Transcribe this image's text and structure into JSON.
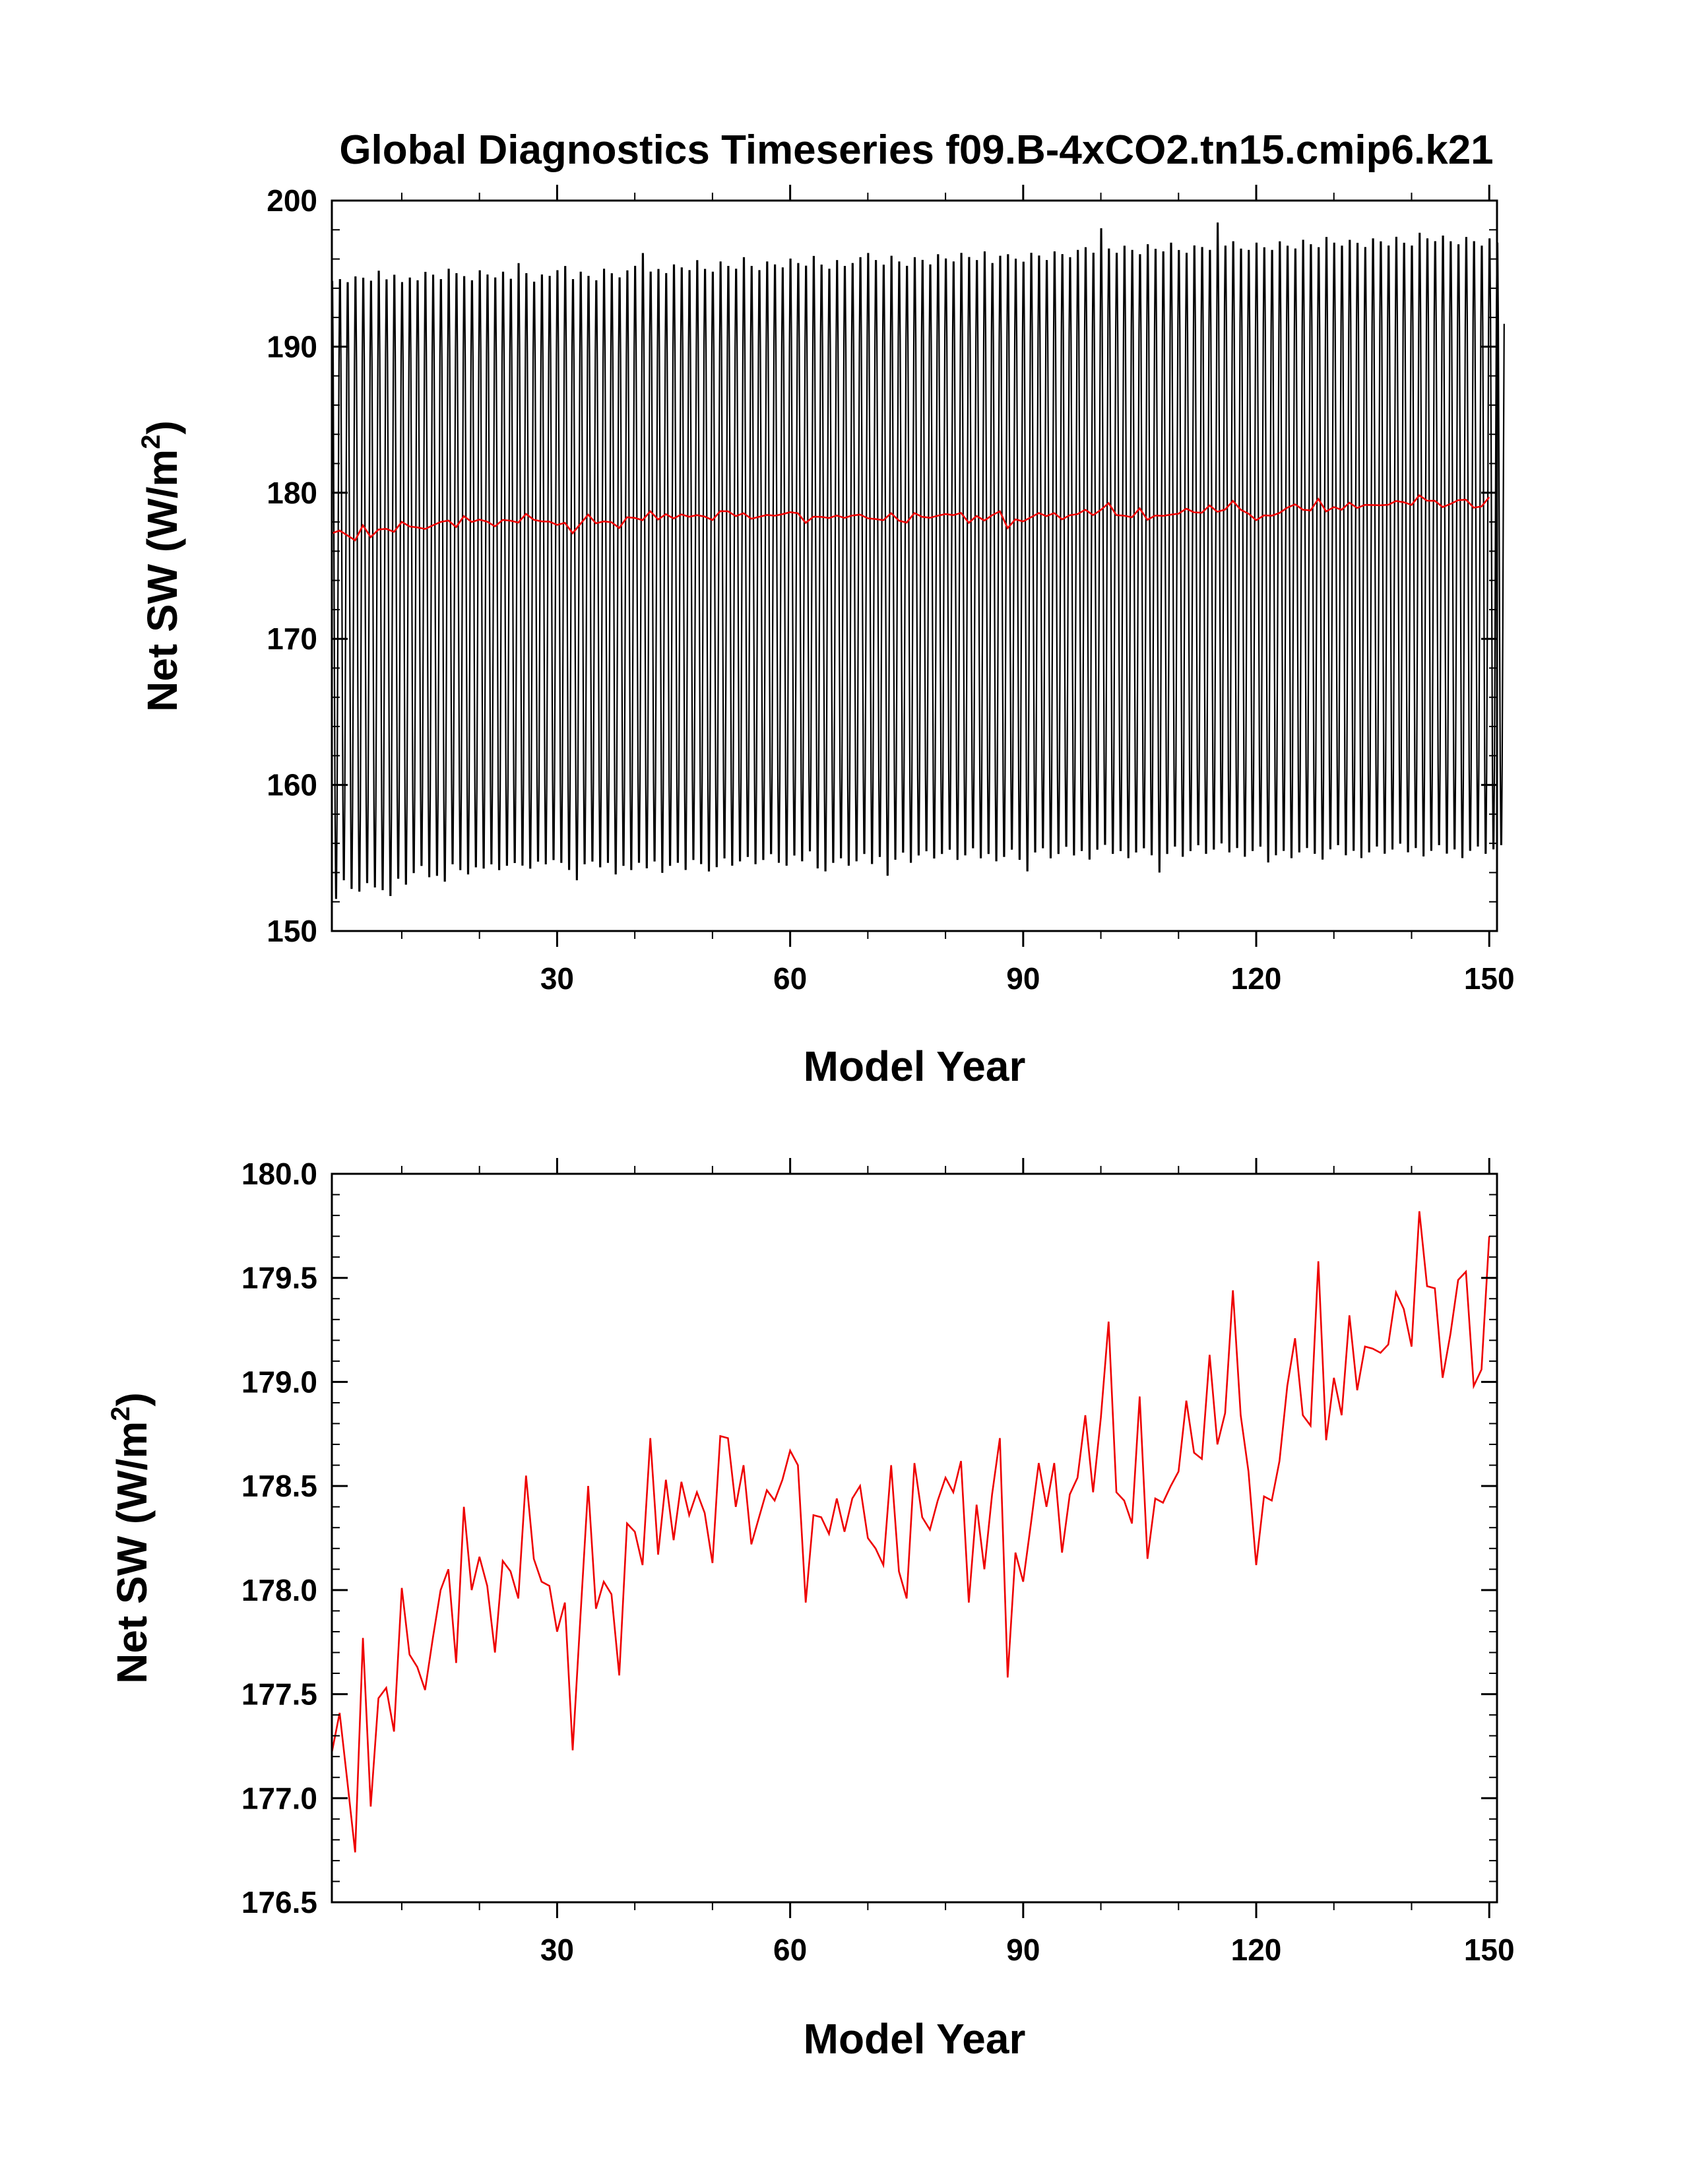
{
  "figure": {
    "title": "Global Diagnostics Timeseries f09.B-4xCO2.tn15.cmip6.k21",
    "line_colors": {
      "monthly": "#000000",
      "annual": "#ee0000"
    }
  },
  "chart_data": [
    {
      "type": "line",
      "title": "Global Diagnostics Timeseries f09.B-4xCO2.tn15.cmip6.k21",
      "xlabel": "Model Year",
      "ylabel_main": "Net SW (W/m",
      "ylabel_sup": "2",
      "ylabel_close": ")",
      "xlim": [
        1,
        151
      ],
      "ylim": [
        150,
        200
      ],
      "xticks": [
        30,
        60,
        90,
        120,
        150
      ],
      "xtick_labels": [
        "30",
        "60",
        "90",
        "120",
        "150"
      ],
      "yticks": [
        150,
        160,
        170,
        180,
        190,
        200
      ],
      "ytick_labels": [
        "150",
        "160",
        "170",
        "180",
        "190",
        "200"
      ],
      "grid": false,
      "legend": "none",
      "series": [
        {
          "type": "monthly_seasonal_cycle",
          "x_start": 1,
          "samples_per_year": 12,
          "annual_max": [
            195.2,
            195.3,
            195.1,
            195.5,
            195.4,
            195.2,
            195.9,
            195.3,
            195.6,
            195.1,
            195.4,
            195.2,
            195.8,
            195.6,
            195.3,
            196.0,
            195.7,
            195.5,
            195.2,
            195.9,
            195.6,
            195.4,
            195.8,
            195.3,
            196.4,
            195.7,
            195.1,
            195.6,
            195.5,
            195.9,
            196.2,
            195.3,
            195.8,
            195.5,
            195.2,
            196.0,
            195.7,
            195.4,
            195.9,
            196.2,
            197.1,
            195.8,
            196.0,
            195.7,
            196.3,
            196.1,
            195.9,
            196.6,
            196.0,
            195.8,
            196.5,
            196.2,
            196.0,
            196.8,
            196.2,
            195.9,
            196.5,
            196.3,
            196.1,
            196.7,
            196.4,
            196.2,
            196.9,
            196.3,
            196.0,
            196.6,
            196.2,
            196.4,
            196.8,
            197.1,
            196.6,
            196.3,
            196.9,
            196.5,
            196.2,
            196.8,
            196.6,
            196.3,
            197.0,
            196.7,
            196.5,
            197.1,
            196.8,
            196.6,
            197.2,
            196.4,
            196.9,
            197.0,
            196.7,
            196.5,
            197.1,
            196.9,
            196.6,
            197.2,
            197.0,
            196.8,
            197.3,
            197.5,
            197.1,
            198.8,
            197.4,
            197.1,
            197.6,
            197.3,
            197.0,
            197.7,
            197.4,
            197.2,
            197.8,
            197.3,
            197.1,
            197.6,
            197.5,
            197.3,
            199.2,
            197.6,
            197.9,
            197.4,
            197.3,
            197.8,
            197.5,
            197.3,
            197.9,
            197.6,
            197.4,
            198.0,
            197.7,
            197.5,
            198.2,
            197.8,
            197.6,
            198.0,
            197.8,
            197.5,
            198.1,
            197.9,
            197.6,
            198.2,
            197.8,
            197.6,
            198.5,
            198.1,
            197.9,
            198.3,
            197.9,
            197.7,
            198.2,
            197.9,
            197.6,
            198.1,
            197.8
          ],
          "annual_min": [
            151.5,
            152.8,
            152.2,
            152.0,
            152.6,
            152.3,
            152.1,
            151.7,
            152.9,
            152.5,
            153.3,
            153.8,
            153.0,
            153.1,
            152.7,
            153.9,
            153.5,
            153.2,
            153.7,
            153.6,
            153.9,
            153.5,
            153.8,
            154.0,
            153.8,
            153.6,
            154.1,
            153.9,
            154.2,
            154.0,
            153.5,
            152.8,
            153.9,
            154.1,
            153.7,
            154.0,
            153.2,
            153.8,
            153.5,
            154.0,
            153.6,
            154.1,
            153.3,
            153.8,
            154.0,
            153.5,
            154.2,
            153.9,
            153.4,
            153.7,
            154.3,
            153.8,
            154.1,
            154.4,
            153.9,
            154.2,
            154.6,
            154.0,
            153.8,
            154.5,
            154.1,
            154.8,
            153.6,
            153.4,
            154.0,
            154.3,
            153.8,
            154.1,
            154.6,
            153.9,
            154.4,
            153.1,
            154.2,
            154.7,
            154.0,
            154.5,
            154.8,
            154.3,
            154.6,
            154.9,
            154.2,
            154.5,
            155.0,
            154.3,
            154.6,
            154.1,
            154.4,
            154.9,
            154.2,
            153.4,
            154.7,
            155.0,
            154.3,
            154.6,
            155.1,
            154.5,
            154.8,
            154.2,
            154.9,
            155.2,
            154.6,
            154.8,
            154.3,
            154.7,
            155.0,
            154.5,
            153.3,
            154.6,
            155.1,
            154.4,
            154.8,
            155.2,
            154.6,
            154.9,
            155.3,
            154.7,
            155.0,
            154.4,
            154.8,
            155.1,
            154.0,
            154.5,
            154.8,
            154.3,
            154.7,
            155.0,
            154.6,
            154.2,
            154.9,
            155.2,
            154.5,
            154.8,
            154.3,
            154.7,
            155.1,
            154.6,
            154.9,
            155.3,
            154.7,
            155.0,
            154.4,
            154.8,
            155.2,
            154.6,
            154.9,
            154.3,
            154.8,
            155.1,
            154.6,
            154.9,
            155.2
          ]
        },
        {
          "type": "annual_mean",
          "x_start": 1,
          "values": [
            177.22,
            177.41,
            177.08,
            176.74,
            177.77,
            176.96,
            177.48,
            177.53,
            177.32,
            178.01,
            177.69,
            177.63,
            177.52,
            177.77,
            178.0,
            178.1,
            177.65,
            178.4,
            178.0,
            178.16,
            178.02,
            177.7,
            178.14,
            178.09,
            177.96,
            178.55,
            178.15,
            178.04,
            178.02,
            177.8,
            177.94,
            177.23,
            177.87,
            178.5,
            177.91,
            178.04,
            177.98,
            177.59,
            178.32,
            178.28,
            178.12,
            178.73,
            178.17,
            178.53,
            178.24,
            178.52,
            178.36,
            178.47,
            178.37,
            178.13,
            178.74,
            178.73,
            178.4,
            178.6,
            178.22,
            178.35,
            178.48,
            178.43,
            178.53,
            178.67,
            178.6,
            177.94,
            178.36,
            178.35,
            178.27,
            178.44,
            178.28,
            178.44,
            178.5,
            178.25,
            178.2,
            178.12,
            178.6,
            178.09,
            177.96,
            178.61,
            178.35,
            178.29,
            178.43,
            178.54,
            178.47,
            178.62,
            177.94,
            178.41,
            178.1,
            178.46,
            178.73,
            177.58,
            178.18,
            178.04,
            178.32,
            178.61,
            178.4,
            178.61,
            178.18,
            178.46,
            178.54,
            178.84,
            178.47,
            178.83,
            179.29,
            178.47,
            178.43,
            178.32,
            178.93,
            178.15,
            178.44,
            178.42,
            178.5,
            178.57,
            178.91,
            178.66,
            178.63,
            179.13,
            178.7,
            178.85,
            179.44,
            178.84,
            178.57,
            178.12,
            178.45,
            178.43,
            178.62,
            178.98,
            179.21,
            178.84,
            178.79,
            179.58,
            178.72,
            179.02,
            178.84,
            179.32,
            178.96,
            179.17,
            179.16,
            179.14,
            179.18,
            179.43,
            179.35,
            179.17,
            179.82,
            179.46,
            179.45,
            179.02,
            179.23,
            179.49,
            179.53,
            178.98,
            179.06,
            179.7
          ]
        }
      ]
    },
    {
      "type": "line",
      "xlabel": "Model Year",
      "ylabel_main": "Net SW (W/m",
      "ylabel_sup": "2",
      "ylabel_close": ")",
      "xlim": [
        1,
        151
      ],
      "ylim": [
        176.5,
        180.0
      ],
      "xticks": [
        30,
        60,
        90,
        120,
        150
      ],
      "xtick_labels": [
        "30",
        "60",
        "90",
        "120",
        "150"
      ],
      "yticks": [
        176.5,
        177.0,
        177.5,
        178.0,
        178.5,
        179.0,
        179.5,
        180.0
      ],
      "ytick_labels": [
        "176.5",
        "177.0",
        "177.5",
        "178.0",
        "178.5",
        "179.0",
        "179.5",
        "180.0"
      ],
      "grid": false,
      "legend": "none",
      "series": [
        {
          "type": "annual_mean",
          "x_start": 1,
          "values": [
            177.22,
            177.41,
            177.08,
            176.74,
            177.77,
            176.96,
            177.48,
            177.53,
            177.32,
            178.01,
            177.69,
            177.63,
            177.52,
            177.77,
            178.0,
            178.1,
            177.65,
            178.4,
            178.0,
            178.16,
            178.02,
            177.7,
            178.14,
            178.09,
            177.96,
            178.55,
            178.15,
            178.04,
            178.02,
            177.8,
            177.94,
            177.23,
            177.87,
            178.5,
            177.91,
            178.04,
            177.98,
            177.59,
            178.32,
            178.28,
            178.12,
            178.73,
            178.17,
            178.53,
            178.24,
            178.52,
            178.36,
            178.47,
            178.37,
            178.13,
            178.74,
            178.73,
            178.4,
            178.6,
            178.22,
            178.35,
            178.48,
            178.43,
            178.53,
            178.67,
            178.6,
            177.94,
            178.36,
            178.35,
            178.27,
            178.44,
            178.28,
            178.44,
            178.5,
            178.25,
            178.2,
            178.12,
            178.6,
            178.09,
            177.96,
            178.61,
            178.35,
            178.29,
            178.43,
            178.54,
            178.47,
            178.62,
            177.94,
            178.41,
            178.1,
            178.46,
            178.73,
            177.58,
            178.18,
            178.04,
            178.32,
            178.61,
            178.4,
            178.61,
            178.18,
            178.46,
            178.54,
            178.84,
            178.47,
            178.83,
            179.29,
            178.47,
            178.43,
            178.32,
            178.93,
            178.15,
            178.44,
            178.42,
            178.5,
            178.57,
            178.91,
            178.66,
            178.63,
            179.13,
            178.7,
            178.85,
            179.44,
            178.84,
            178.57,
            178.12,
            178.45,
            178.43,
            178.62,
            178.98,
            179.21,
            178.84,
            178.79,
            179.58,
            178.72,
            179.02,
            178.84,
            179.32,
            178.96,
            179.17,
            179.16,
            179.14,
            179.18,
            179.43,
            179.35,
            179.17,
            179.82,
            179.46,
            179.45,
            179.02,
            179.23,
            179.49,
            179.53,
            178.98,
            179.06,
            179.7
          ]
        }
      ]
    }
  ]
}
